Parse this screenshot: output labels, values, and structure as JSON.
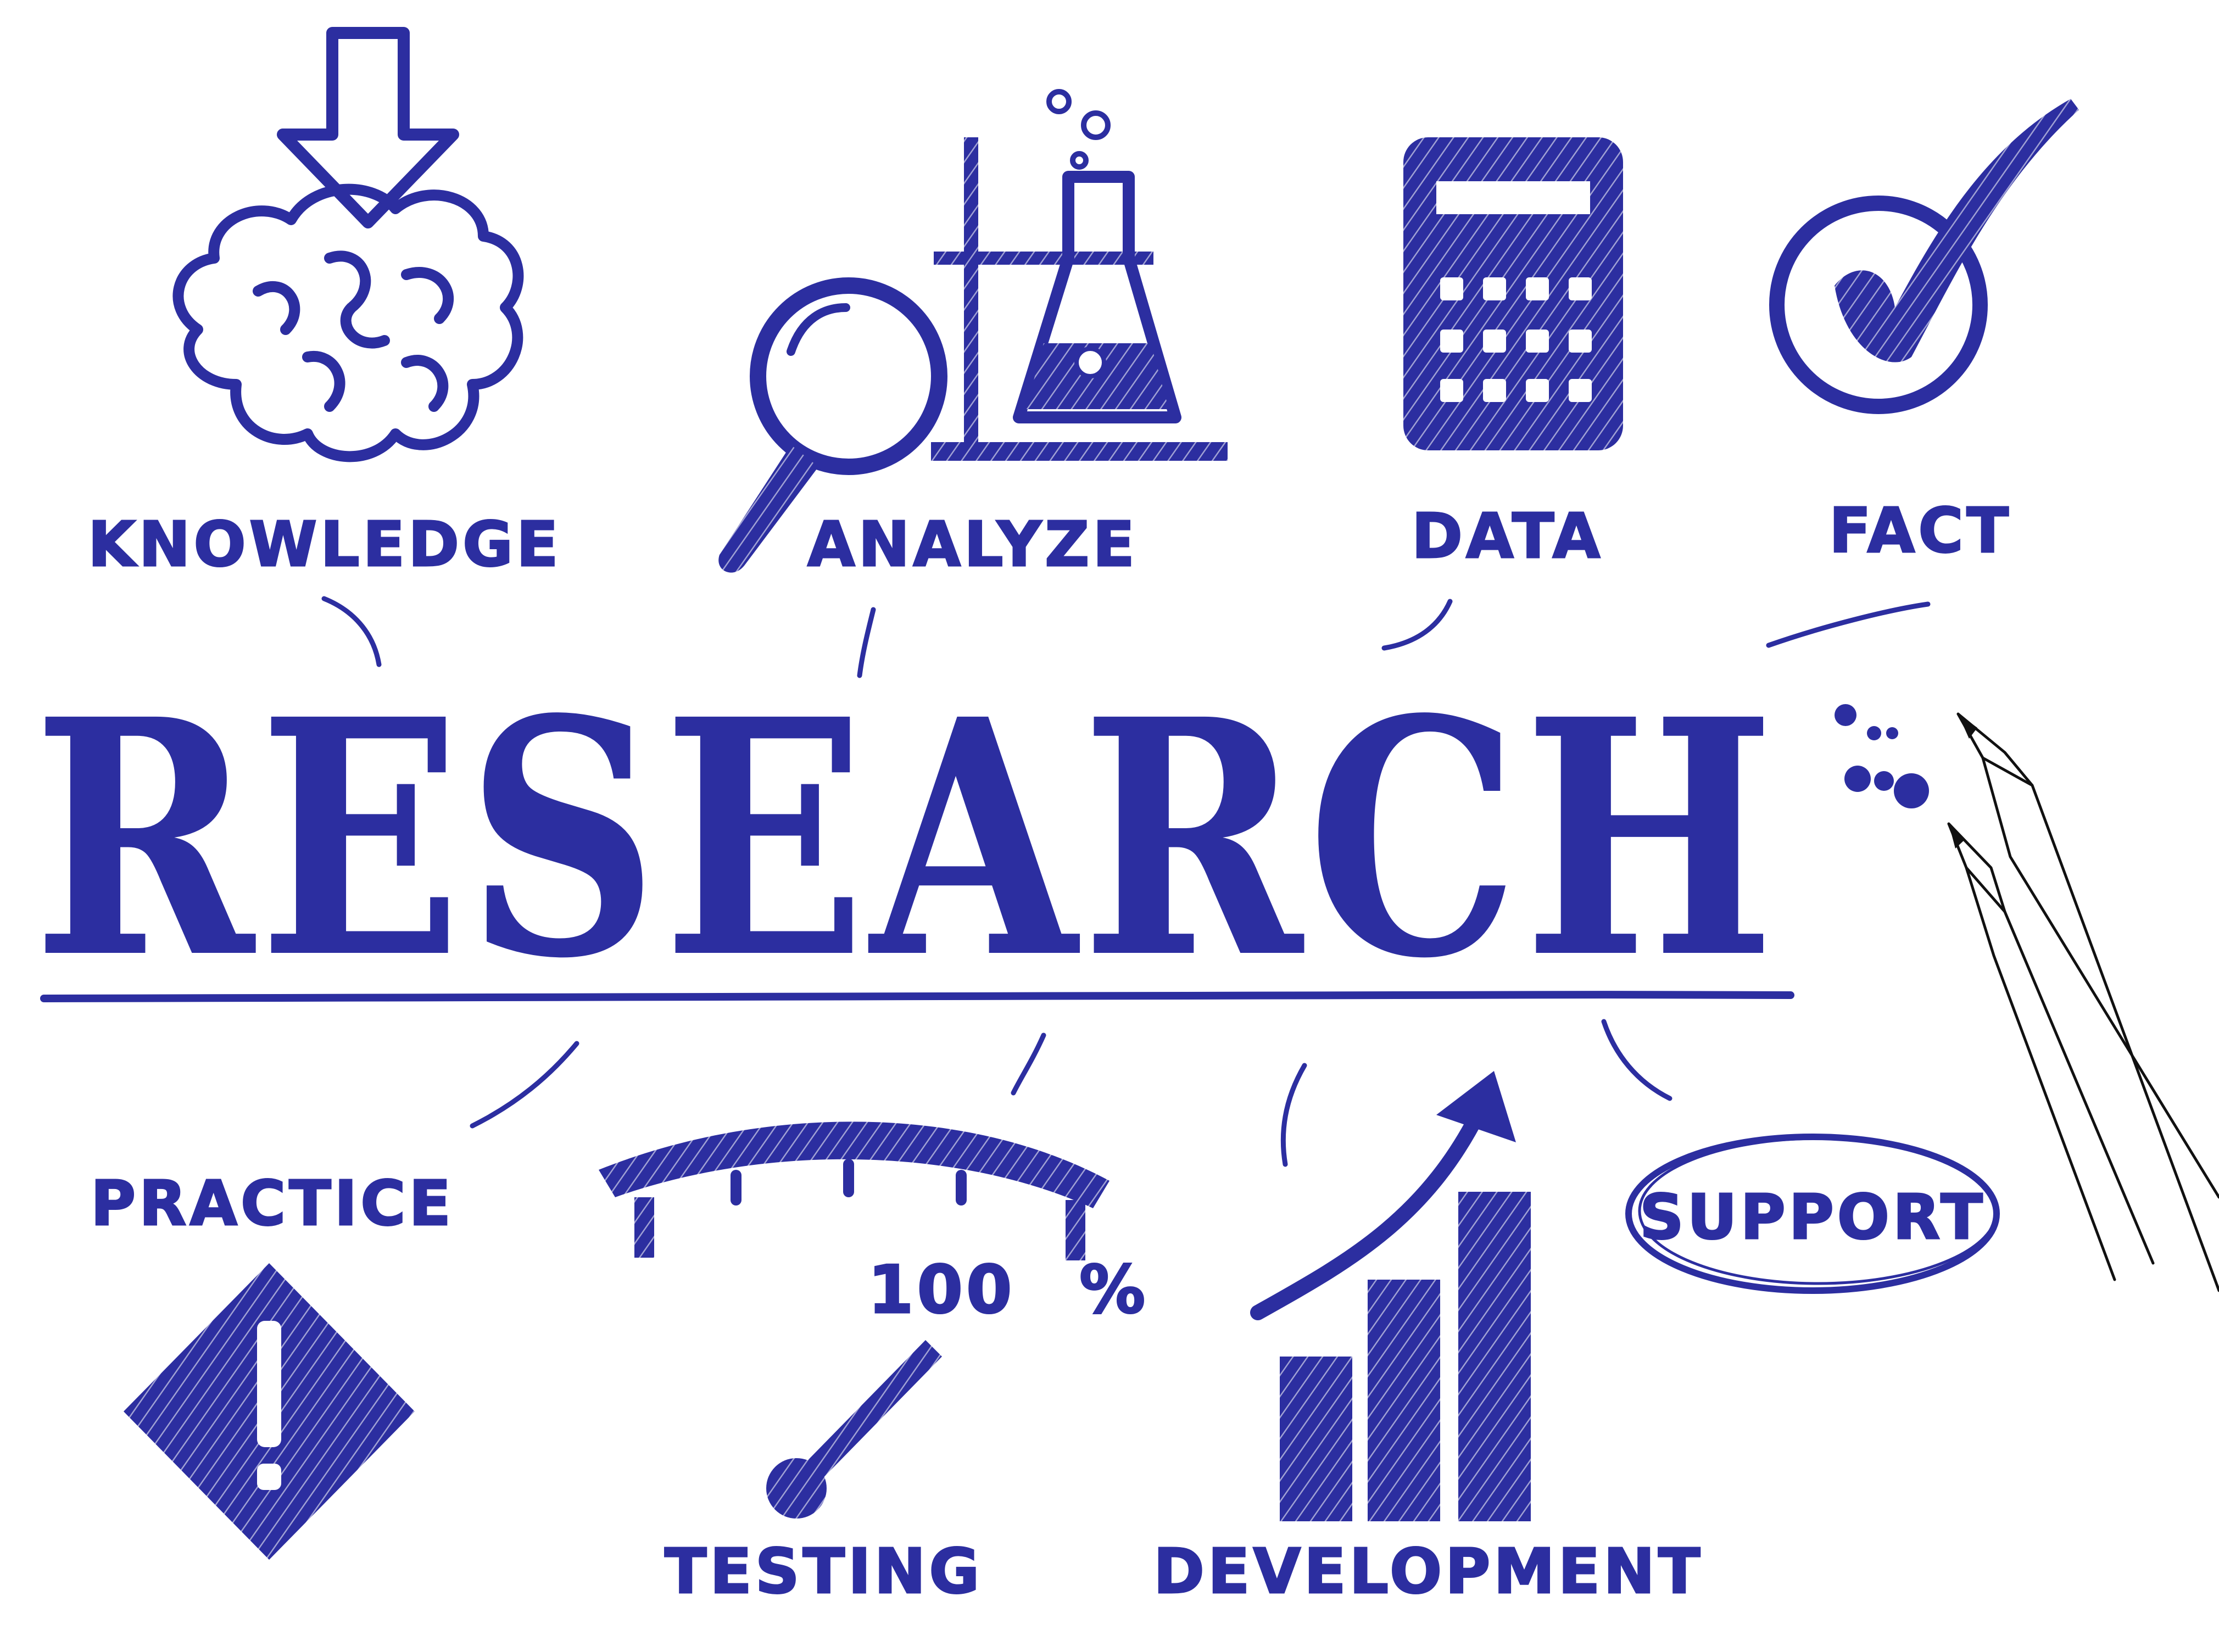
{
  "title": "RESEARCH",
  "labels": {
    "knowledge": "KNOWLEDGE",
    "analyze": "ANALYZE",
    "data": "DATA",
    "fact": "FACT",
    "practice": "PRACTICE",
    "testing": "TESTING",
    "development": "DEVELOPMENT",
    "support": "SUPPORT"
  },
  "gauge": {
    "value_text": "100",
    "unit_text": "%"
  },
  "icons": [
    "arrow-down-icon",
    "brain-icon",
    "magnifier-icon",
    "lab-flask-icon",
    "calculator-icon",
    "checkmark-icon",
    "warning-diamond-icon",
    "gauge-icon",
    "growth-bars-icon",
    "pens-icon"
  ],
  "colors": {
    "ink": "#2c2ea0",
    "background": "#ffffff",
    "pen_outline": "#111111"
  }
}
